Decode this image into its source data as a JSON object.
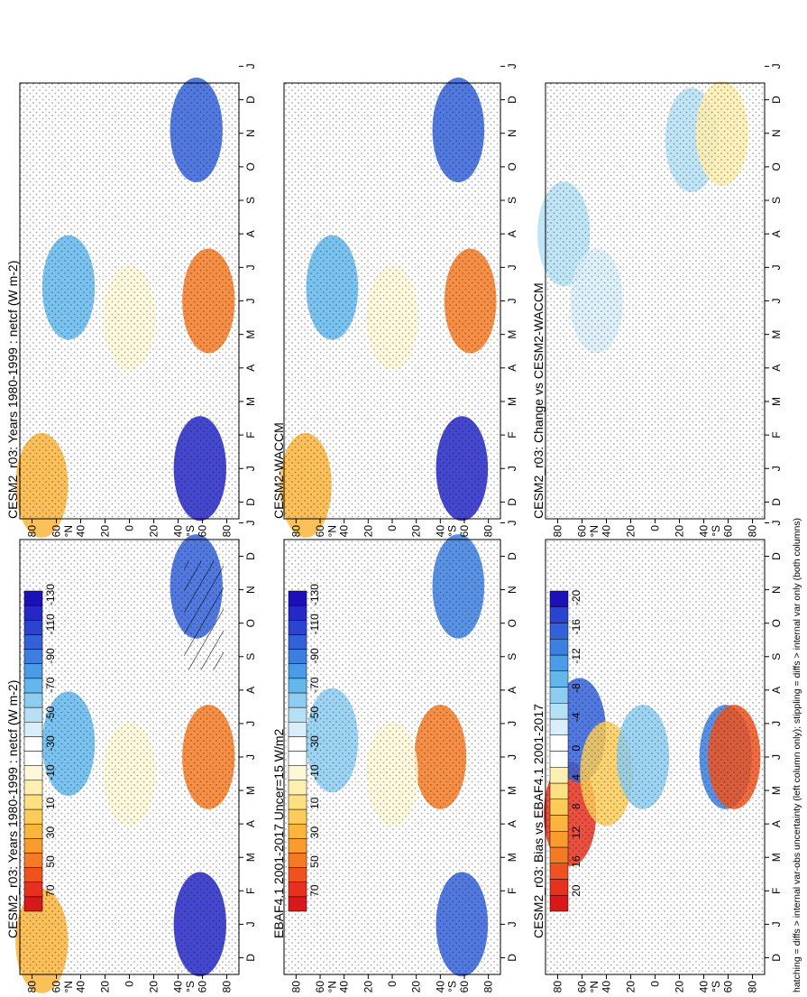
{
  "footer": "hatching = diffs > internal var-obs uncertainty (left column only); stippling = diffs > internal var only (both columns)",
  "months": [
    "D",
    "J",
    "F",
    "M",
    "A",
    "M",
    "J",
    "J",
    "A",
    "S",
    "O",
    "N",
    "D",
    "J"
  ],
  "lat_ticks": [
    "80",
    "60",
    "40",
    "20",
    "0",
    "20",
    "40",
    "60",
    "80"
  ],
  "lat_hemi_labels": [
    "°N",
    "°S"
  ],
  "colorbars": {
    "netcf": {
      "labels": [
        "70",
        "50",
        "30",
        "10",
        "-10",
        "-30",
        "-50",
        "-70",
        "-90",
        "-110",
        "-130"
      ],
      "colors": [
        "#d7191c",
        "#e8301e",
        "#f0521f",
        "#f57a24",
        "#f99c2e",
        "#fbb53d",
        "#fdcc58",
        "#fee083",
        "#ffefb0",
        "#fff8d8",
        "#ffffff",
        "#ffffff",
        "#d8eefa",
        "#b5e0f6",
        "#8ccdf1",
        "#63b7ec",
        "#4a9ce6",
        "#3c7fe0",
        "#3361d9",
        "#2b44d0",
        "#2528c6",
        "#1c10b8"
      ]
    },
    "diff": {
      "labels": [
        "20",
        "16",
        "12",
        "8",
        "4",
        "0",
        "-4",
        "-8",
        "-12",
        "-16",
        "-20"
      ],
      "colors": [
        "#d7191c",
        "#e8301e",
        "#f0521f",
        "#f57a24",
        "#f99c2e",
        "#fbb53d",
        "#fdcc58",
        "#fee083",
        "#ffefb0",
        "#ffffff",
        "#ffffff",
        "#d8eefa",
        "#b5e0f6",
        "#8ccdf1",
        "#63b7ec",
        "#4a9ce6",
        "#3c7fe0",
        "#3361d9",
        "#2b44d0",
        "#1c10b8"
      ]
    }
  },
  "chart_data": [
    {
      "type": "heatmap",
      "title": "CESM2_r03: Years 1980-1999 : netcf (W m-2)",
      "x": "month (Dec–Jan)",
      "y": "latitude (90°N–90°S)",
      "colorbar": "netcf",
      "features": [
        {
          "lat": 50,
          "month": 6.9,
          "value": -75
        },
        {
          "lat": -58,
          "month": 1.5,
          "value": -120
        },
        {
          "lat": -55,
          "month": 11.6,
          "value": -105
        },
        {
          "lat": 72,
          "month": 1.0,
          "value": 25
        },
        {
          "lat": -65,
          "month": 6.5,
          "value": 45
        },
        {
          "lat": 0,
          "month": 6.0,
          "value": -10
        }
      ]
    },
    {
      "type": "heatmap",
      "title": "EBAF4.1 2001-2017 Uncer=15 W/m2",
      "colorbar": "netcf",
      "features": [
        {
          "lat": 50,
          "month": 7.0,
          "value": -65
        },
        {
          "lat": -58,
          "month": 1.5,
          "value": -105
        },
        {
          "lat": -55,
          "month": 11.6,
          "value": -95
        },
        {
          "lat": -40,
          "month": 6.5,
          "value": 45
        },
        {
          "lat": 0,
          "month": 6.0,
          "value": -10
        }
      ]
    },
    {
      "type": "heatmap",
      "title": "CESM2_r03: Bias vs EBAF4.1 2001-2017",
      "colorbar": "diff",
      "features": [
        {
          "lat": 70,
          "month": 4.8,
          "value": 18
        },
        {
          "lat": 62,
          "month": 7.3,
          "value": -17
        },
        {
          "lat": 40,
          "month": 6.0,
          "value": 8
        },
        {
          "lat": -58,
          "month": 6.5,
          "value": -14
        },
        {
          "lat": -65,
          "month": 6.5,
          "value": 17
        },
        {
          "lat": 10,
          "month": 6.5,
          "value": -8
        }
      ]
    },
    {
      "type": "heatmap",
      "title": "CESM2_r03: Years 1980-1999 : netcf (W m-2)",
      "colorbar": "netcf",
      "features": [
        {
          "lat": 50,
          "month": 6.9,
          "value": -75
        },
        {
          "lat": -58,
          "month": 1.5,
          "value": -120
        },
        {
          "lat": -55,
          "month": 11.6,
          "value": -105
        },
        {
          "lat": 72,
          "month": 1.0,
          "value": 25
        },
        {
          "lat": -65,
          "month": 6.5,
          "value": 45
        },
        {
          "lat": 0,
          "month": 6.0,
          "value": -10
        }
      ]
    },
    {
      "type": "heatmap",
      "title": "CESM2-WACCM",
      "colorbar": "netcf",
      "features": [
        {
          "lat": 50,
          "month": 6.9,
          "value": -75
        },
        {
          "lat": -58,
          "month": 1.5,
          "value": -120
        },
        {
          "lat": -55,
          "month": 11.6,
          "value": -105
        },
        {
          "lat": 72,
          "month": 1.0,
          "value": 25
        },
        {
          "lat": -65,
          "month": 6.5,
          "value": 45
        },
        {
          "lat": 0,
          "month": 6.0,
          "value": -10
        }
      ]
    },
    {
      "type": "heatmap",
      "title": "CESM2_r03: Change vs CESM2-WACCM",
      "colorbar": "diff",
      "features": [
        {
          "lat": 75,
          "month": 8.5,
          "value": -6
        },
        {
          "lat": 48,
          "month": 6.5,
          "value": -4
        },
        {
          "lat": -30,
          "month": 11.3,
          "value": -6
        },
        {
          "lat": -55,
          "month": 11.5,
          "value": 4
        }
      ]
    }
  ]
}
